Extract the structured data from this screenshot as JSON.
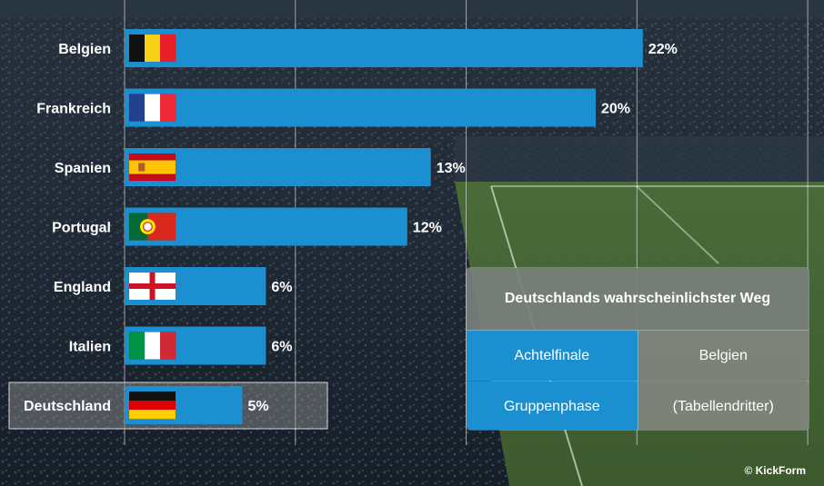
{
  "chart_data": {
    "type": "bar",
    "orientation": "horizontal",
    "categories": [
      "Belgien",
      "Frankreich",
      "Spanien",
      "Portugal",
      "England",
      "Italien",
      "Deutschland"
    ],
    "values": [
      22,
      20,
      13,
      12,
      6,
      6,
      5
    ],
    "value_labels": [
      "22%",
      "20%",
      "13%",
      "12%",
      "6%",
      "6%",
      "5%"
    ],
    "highlighted_category": "Deutschland",
    "xlim": [
      0,
      30
    ],
    "grid": true,
    "bar_color": "#1b8fd0",
    "flags": [
      "flag-belgium",
      "flag-france",
      "flag-spain",
      "flag-portugal",
      "flag-england",
      "flag-italy",
      "flag-germany"
    ]
  },
  "path_box": {
    "title": "Deutschlands wahrscheinlichster Weg",
    "rows": [
      {
        "stage": "Achtelfinale",
        "opponent": "Belgien"
      },
      {
        "stage": "Gruppenphase",
        "opponent": "(Tabellendritter)"
      }
    ]
  },
  "credit": "© KickForm"
}
